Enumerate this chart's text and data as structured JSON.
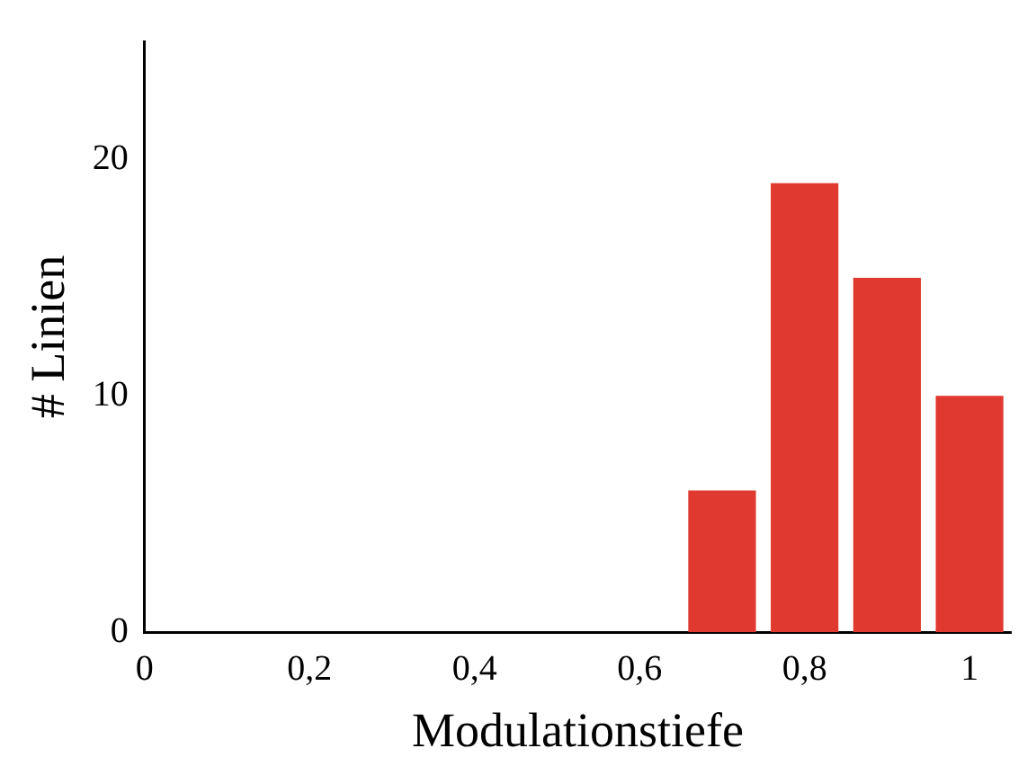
{
  "chart_data": {
    "type": "histogram",
    "xlabel": "Modulationstiefe",
    "ylabel": "# Linien",
    "bins": [
      0.65,
      0.75,
      0.85,
      0.95,
      1.05
    ],
    "values": [
      6,
      19,
      15,
      10
    ],
    "color": "#e03a30",
    "xlim": [
      0,
      1.05
    ],
    "xticks": [
      0,
      {
        "value": 0.2,
        "label": "0,2"
      },
      {
        "value": 0.4,
        "label": "0,4"
      },
      {
        "value": 0.6,
        "label": "0,6"
      },
      {
        "value": 0.8,
        "label": "0,8"
      },
      1
    ],
    "ylim": [
      0,
      25
    ],
    "yticks": [
      0,
      10,
      20
    ],
    "grid": false,
    "legend": false
  }
}
